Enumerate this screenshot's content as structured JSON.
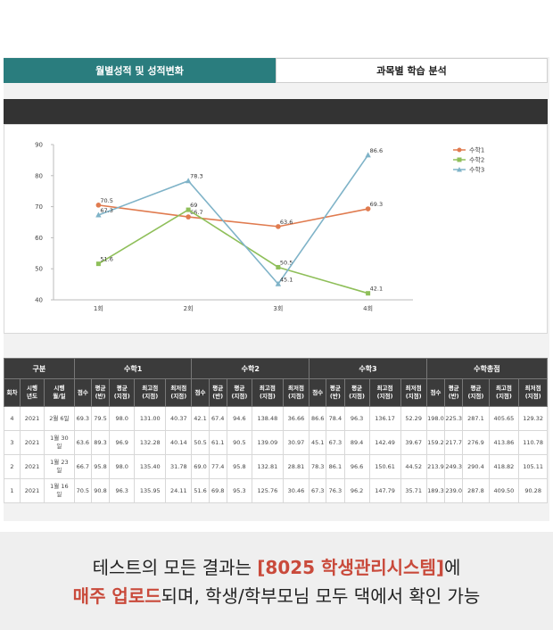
{
  "tabs": [
    {
      "label": "월별성적 및 성적변화",
      "active": true
    },
    {
      "label": "과목별 학습 분석",
      "active": false
    }
  ],
  "chart_data": {
    "type": "line",
    "categories": [
      "1회",
      "2회",
      "3회",
      "4회"
    ],
    "ylim": [
      40,
      90
    ],
    "yticks": [
      90,
      80,
      70,
      60,
      50,
      40
    ],
    "legend_position": "top-right",
    "series": [
      {
        "name": "수학1",
        "color": "#e07b4f",
        "values": [
          70.5,
          66.7,
          63.6,
          69.3
        ],
        "labels": [
          "70.5",
          "66.7",
          "63.6",
          "69.3"
        ]
      },
      {
        "name": "수학2",
        "color": "#8fbf5a",
        "values": [
          51.6,
          69.0,
          50.5,
          42.1
        ],
        "labels": [
          "51.6",
          "69",
          "50.5",
          "42.1"
        ]
      },
      {
        "name": "수학3",
        "color": "#7fb3c8",
        "values": [
          67.3,
          78.3,
          45.1,
          86.6
        ],
        "labels": [
          "67.3",
          "78.3",
          "45.1",
          "86.6"
        ]
      }
    ]
  },
  "table": {
    "group_header": {
      "label": "구분"
    },
    "groups": [
      "수학1",
      "수학2",
      "수학3",
      "수학총점"
    ],
    "fixed_cols": [
      "회차",
      "시행\n년도",
      "시행\n월/일"
    ],
    "sub_cols": [
      "점수",
      "평균\n(반)",
      "평균\n(지점)",
      "최고점\n(지점)",
      "최저점\n(지점)"
    ],
    "rows": [
      {
        "cells": [
          "4",
          "2021",
          "2월 6일",
          "69.3",
          "79.5",
          "98.0",
          "131.00",
          "40.37",
          "42.1",
          "67.4",
          "94.6",
          "138.48",
          "36.66",
          "86.6",
          "78.4",
          "96.3",
          "136.17",
          "52.29",
          "198.0",
          "225.3",
          "287.1",
          "405.65",
          "129.32"
        ]
      },
      {
        "cells": [
          "3",
          "2021",
          "1월 30\n일",
          "63.6",
          "89.3",
          "96.9",
          "132.28",
          "40.14",
          "50.5",
          "61.1",
          "90.5",
          "139.09",
          "30.97",
          "45.1",
          "67.3",
          "89.4",
          "142.49",
          "39.67",
          "159.2",
          "217.7",
          "276.9",
          "413.86",
          "110.78"
        ]
      },
      {
        "cells": [
          "2",
          "2021",
          "1월 23\n일",
          "66.7",
          "95.8",
          "98.0",
          "135.40",
          "31.78",
          "69.0",
          "77.4",
          "95.8",
          "132.81",
          "28.81",
          "78.3",
          "86.1",
          "96.6",
          "150.61",
          "44.52",
          "213.9",
          "249.3",
          "290.4",
          "418.82",
          "105.11"
        ]
      },
      {
        "cells": [
          "1",
          "2021",
          "1월 16\n일",
          "70.5",
          "90.8",
          "96.3",
          "135.95",
          "24.11",
          "51.6",
          "69.8",
          "95.3",
          "125.76",
          "30.46",
          "67.3",
          "76.3",
          "96.2",
          "147.79",
          "35.71",
          "189.3",
          "239.0",
          "287.8",
          "409.50",
          "90.28"
        ]
      }
    ]
  },
  "caption": {
    "line1_a": "테스트의 모든 결과는 ",
    "line1_b": "[8025 학생관리시스템]",
    "line1_c": "에",
    "line2_a": "매주 업로드",
    "line2_b": "되며, 학생/학부모님 모두 댁에서 확인 가능"
  },
  "colors": {
    "tab_active": "#2a7d7e",
    "header_dark": "#333333",
    "highlight": "#c94a3b"
  }
}
